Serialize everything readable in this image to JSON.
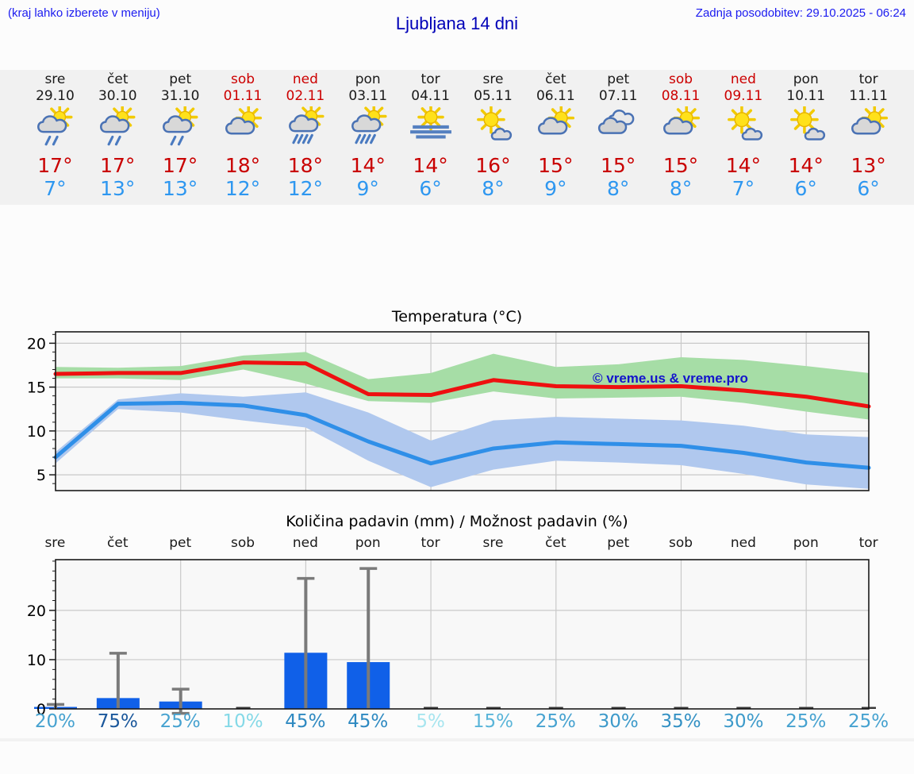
{
  "header": {
    "note": "(kraj lahko izberete v meniju)",
    "title": "Ljubljana 14 dni",
    "updated": "Zadnja posodobitev: 29.10.2025 - 06:24"
  },
  "watermark": "© vreme.us & vreme.pro",
  "days": [
    {
      "name": "sre",
      "date": "29.10",
      "red": false,
      "icon": "sun-cloud-rain2",
      "high": "17°",
      "low": "7°",
      "pct": "20%",
      "pct_color": "#46a2d0"
    },
    {
      "name": "čet",
      "date": "30.10",
      "red": false,
      "icon": "sun-cloud-rain2",
      "high": "17°",
      "low": "13°",
      "pct": "75%",
      "pct_color": "#1a579b"
    },
    {
      "name": "pet",
      "date": "31.10",
      "red": false,
      "icon": "sun-cloud-rain2",
      "high": "17°",
      "low": "13°",
      "pct": "25%",
      "pct_color": "#46a2d0"
    },
    {
      "name": "sob",
      "date": "01.11",
      "red": true,
      "icon": "sun-cloud",
      "high": "18°",
      "low": "12°",
      "pct": "10%",
      "pct_color": "#85d9e7"
    },
    {
      "name": "ned",
      "date": "02.11",
      "red": true,
      "icon": "sun-cloud-rain4",
      "high": "18°",
      "low": "12°",
      "pct": "45%",
      "pct_color": "#2e89c1"
    },
    {
      "name": "pon",
      "date": "03.11",
      "red": false,
      "icon": "sun-cloud-rain4",
      "high": "14°",
      "low": "9°",
      "pct": "45%",
      "pct_color": "#2e89c1"
    },
    {
      "name": "tor",
      "date": "04.11",
      "red": false,
      "icon": "sun-fog",
      "high": "14°",
      "low": "6°",
      "pct": "5%",
      "pct_color": "#a7e5ef"
    },
    {
      "name": "sre",
      "date": "05.11",
      "red": false,
      "icon": "sun-smallcloud",
      "high": "16°",
      "low": "8°",
      "pct": "15%",
      "pct_color": "#5ab5d9"
    },
    {
      "name": "čet",
      "date": "06.11",
      "red": false,
      "icon": "sun-cloud",
      "high": "15°",
      "low": "9°",
      "pct": "25%",
      "pct_color": "#46a2d0"
    },
    {
      "name": "pet",
      "date": "07.11",
      "red": false,
      "icon": "clouds",
      "high": "15°",
      "low": "8°",
      "pct": "30%",
      "pct_color": "#3d9aca"
    },
    {
      "name": "sob",
      "date": "08.11",
      "red": true,
      "icon": "sun-cloud",
      "high": "15°",
      "low": "8°",
      "pct": "35%",
      "pct_color": "#3491c4"
    },
    {
      "name": "ned",
      "date": "09.11",
      "red": true,
      "icon": "sun-smallcloud",
      "high": "14°",
      "low": "7°",
      "pct": "30%",
      "pct_color": "#3d9aca"
    },
    {
      "name": "pon",
      "date": "10.11",
      "red": false,
      "icon": "sun-smallcloud",
      "high": "14°",
      "low": "6°",
      "pct": "25%",
      "pct_color": "#46a2d0"
    },
    {
      "name": "tor",
      "date": "11.11",
      "red": false,
      "icon": "sun-cloud",
      "high": "13°",
      "low": "6°",
      "pct": "25%",
      "pct_color": "#46a2d0"
    }
  ],
  "chart_data": [
    {
      "type": "line",
      "title": "Temperatura (°C)",
      "categories": [
        "29.10",
        "30.10",
        "31.10",
        "01.11",
        "02.11",
        "03.11",
        "04.11",
        "05.11",
        "06.11",
        "07.11",
        "08.11",
        "09.11",
        "10.11",
        "11.11"
      ],
      "yticks": [
        5,
        10,
        15,
        20
      ],
      "ylim": [
        3.2,
        21.3
      ],
      "grid_day_indices": [
        2,
        4,
        6,
        8,
        10,
        12
      ],
      "series": [
        {
          "name": "max temperature",
          "color": "#ee1010",
          "values": [
            16.5,
            16.6,
            16.6,
            17.8,
            17.7,
            14.2,
            14.1,
            15.8,
            15.1,
            15.0,
            15.1,
            14.6,
            13.9,
            12.8
          ]
        },
        {
          "name": "min temperature",
          "color": "#2f8fe8",
          "values": [
            7.0,
            13.1,
            13.2,
            12.9,
            11.8,
            8.8,
            6.3,
            8.0,
            8.7,
            8.5,
            8.3,
            7.5,
            6.4,
            5.8
          ]
        }
      ],
      "bands": [
        {
          "name": "max range",
          "color": "#a6dda6",
          "upper": [
            17.3,
            17.2,
            17.4,
            18.6,
            19.0,
            15.9,
            16.6,
            18.8,
            17.3,
            17.6,
            18.4,
            18.1,
            17.4,
            16.6
          ],
          "lower": [
            16.0,
            16.0,
            15.8,
            17.0,
            15.4,
            13.4,
            13.2,
            14.5,
            13.7,
            13.8,
            13.9,
            13.2,
            12.2,
            11.3
          ]
        },
        {
          "name": "min range",
          "color": "#b0c8ee",
          "upper": [
            7.6,
            13.6,
            14.3,
            13.9,
            14.4,
            12.1,
            8.9,
            11.2,
            11.6,
            11.4,
            11.2,
            10.6,
            9.6,
            9.3
          ],
          "lower": [
            6.3,
            12.5,
            12.1,
            11.2,
            10.4,
            6.6,
            3.6,
            5.6,
            6.6,
            6.4,
            6.1,
            5.1,
            3.9,
            3.4
          ]
        }
      ]
    },
    {
      "type": "bar",
      "title": "Količina padavin (mm) / Možnost padavin (%)",
      "categories": [
        "sre",
        "čet",
        "pet",
        "sob",
        "ned",
        "pon",
        "tor",
        "sre",
        "čet",
        "pet",
        "sob",
        "ned",
        "pon",
        "tor"
      ],
      "yticks": [
        0,
        10,
        20
      ],
      "ylim": [
        0,
        30.3
      ],
      "grid_day_indices": [
        2,
        4,
        6,
        8,
        10,
        12
      ],
      "bar_color": "#1060e8",
      "values": [
        0.4,
        2.2,
        1.5,
        0,
        11.4,
        9.5,
        0,
        0,
        0,
        0,
        0,
        0,
        0,
        0
      ],
      "whisker_top": [
        0.9,
        11.3,
        4.0,
        null,
        26.5,
        28.5,
        null,
        null,
        null,
        null,
        null,
        null,
        null,
        null
      ],
      "whisker_bottom": [
        0.1,
        0.15,
        -0.9,
        null,
        0.15,
        0.15,
        null,
        null,
        null,
        null,
        null,
        null,
        null,
        null
      ],
      "zero_marker_days": [
        3,
        6,
        7,
        8,
        9,
        10,
        11,
        12,
        13
      ],
      "probabilities": [
        "20%",
        "75%",
        "25%",
        "10%",
        "45%",
        "45%",
        "5%",
        "15%",
        "25%",
        "30%",
        "35%",
        "30%",
        "25%",
        "25%"
      ]
    }
  ]
}
